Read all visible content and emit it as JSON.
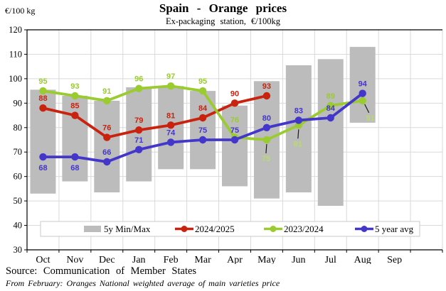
{
  "header": {
    "unit_label": "€/100 kg",
    "title": "Spain - Orange prices",
    "subtitle": "Ex-packaging station, €/100kg"
  },
  "footer": {
    "source": "Source: Communication of Member States",
    "note": "From February: Oranges National weighted average of main varieties price"
  },
  "colors": {
    "bar": "#bcbcbc",
    "red": "#c9220e",
    "green": "#9acb2f",
    "green_light": "#b9da70",
    "blue": "#4336cb",
    "grid": "#d9d9d9",
    "axis": "#000000",
    "legend_border": "#c9c9c9",
    "leader_line": "#1a1a1a"
  },
  "chart_data": {
    "type": "bar",
    "subtype": "floating-minmax-bars-with-lines",
    "title": "Spain - Orange prices",
    "subtitle": "Ex-packaging station, €/100kg",
    "categories": [
      "Oct",
      "Nov",
      "Dec",
      "Jan",
      "Feb",
      "Mar",
      "Apr",
      "May",
      "Jun",
      "Jul",
      "Aug",
      "Sep"
    ],
    "ylabel": "€/100 kg",
    "ylim": [
      30,
      120
    ],
    "y_tick_step": 10,
    "grid": true,
    "legend_position": "inside-bottom",
    "bars": {
      "name": "5y Min/Max",
      "ranges": [
        [
          53,
          95.5
        ],
        [
          58,
          93
        ],
        [
          53.5,
          91
        ],
        [
          58,
          96.5
        ],
        [
          63,
          97
        ],
        [
          63,
          95
        ],
        [
          56,
          89
        ],
        [
          51,
          99
        ],
        [
          53.5,
          105.5
        ],
        [
          48,
          108
        ],
        [
          82,
          113
        ],
        null
      ]
    },
    "series": [
      {
        "name": "2024/2025",
        "color_key": "red",
        "values": [
          88,
          85,
          76,
          79,
          81,
          84,
          90,
          93,
          null,
          null,
          null,
          null
        ],
        "label_pos": [
          "a",
          "a",
          "a",
          "a",
          "a",
          "a",
          "a",
          "a",
          null,
          null,
          null,
          null
        ]
      },
      {
        "name": "2023/2024",
        "color_key": "green",
        "values": [
          95,
          93,
          91,
          96,
          97,
          95,
          76,
          75,
          81,
          89,
          91,
          null
        ],
        "label_pos": [
          "a",
          "a",
          "a",
          "a",
          "a",
          "a",
          "a2",
          "lb",
          "lb",
          "a",
          "lbr",
          null
        ]
      },
      {
        "name": "5 year avg",
        "color_key": "blue",
        "values": [
          68,
          68,
          66,
          71,
          74,
          75,
          75,
          80,
          83,
          84,
          94,
          null
        ],
        "label_pos": [
          "b",
          "b",
          "a",
          "a",
          "a",
          "a",
          "a",
          "a",
          "a",
          "a",
          "a",
          null
        ]
      }
    ],
    "legend_entries": [
      "5y Min/Max",
      "2024/2025",
      "2023/2024",
      "5 year avg"
    ]
  }
}
